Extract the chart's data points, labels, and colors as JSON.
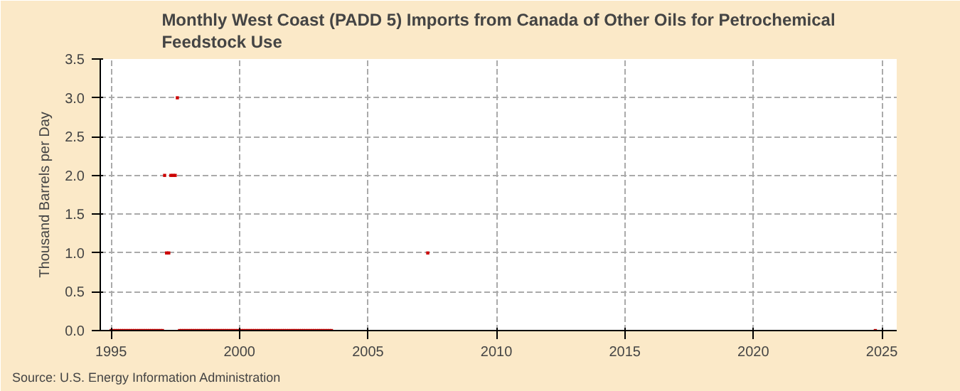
{
  "chart_data": {
    "type": "scatter",
    "title": "Monthly West Coast (PADD 5) Imports from Canada of Other Oils for Petrochemical Feedstock Use",
    "ylabel": "Thousand Barrels per Day",
    "annotations": [
      "Source: U.S. Energy Information Administration"
    ],
    "x": [
      "1995-01",
      "1995-02",
      "1995-03",
      "1995-04",
      "1995-05",
      "1995-06",
      "1995-07",
      "1995-08",
      "1995-09",
      "1995-10",
      "1995-11",
      "1995-12",
      "1996-01",
      "1996-02",
      "1996-03",
      "1996-04",
      "1996-05",
      "1996-06",
      "1996-07",
      "1996-08",
      "1996-09",
      "1996-10",
      "1996-11",
      "1996-12",
      "1997-01",
      "1997-02",
      "1997-03",
      "1997-04",
      "1997-05",
      "1997-06",
      "1997-07",
      "1997-08",
      "1997-09",
      "1997-10",
      "1997-11",
      "1997-12",
      "1998-01",
      "1998-02",
      "1998-03",
      "1998-04",
      "1998-05",
      "1998-06",
      "1998-07",
      "1998-08",
      "1998-09",
      "1998-10",
      "1998-11",
      "1998-12",
      "1999-01",
      "1999-02",
      "1999-03",
      "1999-04",
      "1999-05",
      "1999-06",
      "1999-07",
      "1999-08",
      "1999-09",
      "1999-10",
      "1999-11",
      "1999-12",
      "2000-01",
      "2000-02",
      "2000-03",
      "2000-04",
      "2000-05",
      "2000-06",
      "2000-07",
      "2000-08",
      "2000-09",
      "2000-10",
      "2000-11",
      "2000-12",
      "2001-01",
      "2001-02",
      "2001-03",
      "2001-04",
      "2001-05",
      "2001-06",
      "2001-07",
      "2001-08",
      "2001-09",
      "2001-10",
      "2001-11",
      "2001-12",
      "2002-01",
      "2002-02",
      "2002-03",
      "2002-04",
      "2002-05",
      "2002-06",
      "2002-07",
      "2002-08",
      "2002-09",
      "2002-10",
      "2002-11",
      "2002-12",
      "2003-01",
      "2003-02",
      "2003-03",
      "2003-04",
      "2003-05",
      "2003-06",
      "2003-07",
      "2003-08",
      "2007-05",
      "2024-10"
    ],
    "series": [
      {
        "color": "#cc0000",
        "values": [
          0,
          0,
          0,
          0,
          0,
          0,
          0,
          0,
          0,
          0,
          0,
          0,
          0,
          0,
          0,
          0,
          0,
          0,
          0,
          0,
          0,
          0,
          0,
          0,
          0,
          2,
          1,
          1,
          2,
          2,
          2,
          3,
          0,
          0,
          0,
          0,
          0,
          0,
          0,
          0,
          0,
          0,
          0,
          0,
          0,
          0,
          0,
          0,
          0,
          0,
          0,
          0,
          0,
          0,
          0,
          0,
          0,
          0,
          0,
          0,
          0,
          0,
          0,
          0,
          0,
          0,
          0,
          0,
          0,
          0,
          0,
          0,
          0,
          0,
          0,
          0,
          0,
          0,
          0,
          0,
          0,
          0,
          0,
          0,
          0,
          0,
          0,
          0,
          0,
          0,
          0,
          0,
          0,
          0,
          0,
          0,
          0,
          0,
          0,
          0,
          0,
          0,
          0,
          0,
          1,
          0
        ]
      }
    ],
    "xlim": [
      "1994-08",
      "2025-08"
    ],
    "xticks": [
      "1995",
      "2000",
      "2005",
      "2010",
      "2015",
      "2020",
      "2025"
    ],
    "ylim": [
      0,
      3.5
    ],
    "yticks": [
      {
        "value": 0,
        "label": "0.0"
      },
      {
        "value": 0.5,
        "label": "0.5"
      },
      {
        "value": 1,
        "label": "1.0"
      },
      {
        "value": 1.5,
        "label": "1.5"
      },
      {
        "value": 2,
        "label": "2.0"
      },
      {
        "value": 2.5,
        "label": "2.5"
      },
      {
        "value": 3,
        "label": "3.0"
      },
      {
        "value": 3.5,
        "label": "3.5"
      }
    ],
    "grid": true,
    "marker": "square"
  }
}
